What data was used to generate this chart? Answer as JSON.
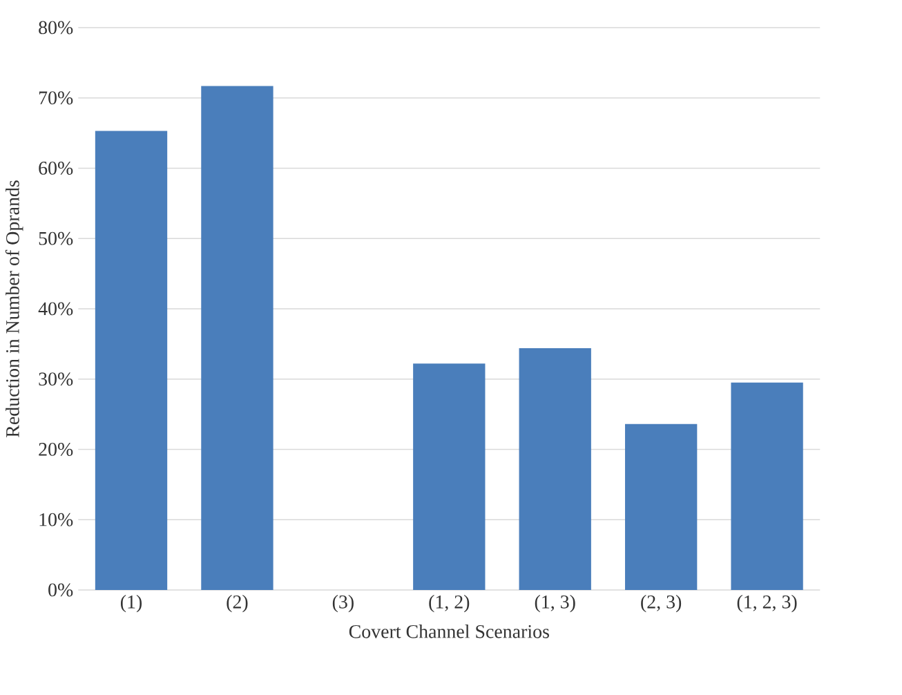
{
  "chart_data": {
    "type": "bar",
    "xlabel": "Covert Channel Scenarios",
    "ylabel": "Reduction in Number of Oprands",
    "categories": [
      "(1)",
      "(2)",
      "(3)",
      "(1, 2)",
      "(1, 3)",
      "(2, 3)",
      "(1, 2, 3)"
    ],
    "values": [
      65.3,
      71.7,
      0,
      32.2,
      34.4,
      23.6,
      29.5
    ],
    "color": "#4a7ebb",
    "ylim": [
      0,
      80
    ],
    "yticks": [
      {
        "value": 0,
        "label": "0%"
      },
      {
        "value": 10,
        "label": "10%"
      },
      {
        "value": 20,
        "label": "20%"
      },
      {
        "value": 30,
        "label": "30%"
      },
      {
        "value": 40,
        "label": "40%"
      },
      {
        "value": 50,
        "label": "50%"
      },
      {
        "value": 60,
        "label": "60%"
      },
      {
        "value": 70,
        "label": "70%"
      },
      {
        "value": 80,
        "label": "80%"
      }
    ],
    "grid": "y"
  }
}
